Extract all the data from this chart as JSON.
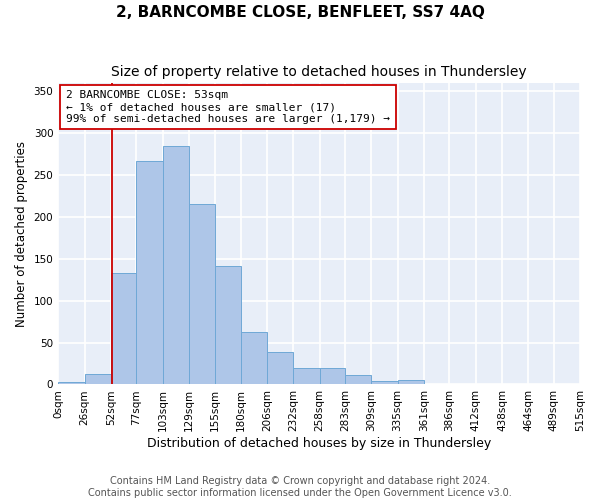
{
  "title": "2, BARNCOMBE CLOSE, BENFLEET, SS7 4AQ",
  "subtitle": "Size of property relative to detached houses in Thundersley",
  "xlabel": "Distribution of detached houses by size in Thundersley",
  "ylabel": "Number of detached properties",
  "bin_labels": [
    "0sqm",
    "26sqm",
    "52sqm",
    "77sqm",
    "103sqm",
    "129sqm",
    "155sqm",
    "180sqm",
    "206sqm",
    "232sqm",
    "258sqm",
    "283sqm",
    "309sqm",
    "335sqm",
    "361sqm",
    "386sqm",
    "412sqm",
    "438sqm",
    "464sqm",
    "489sqm",
    "515sqm"
  ],
  "bin_edges": [
    0,
    26,
    52,
    77,
    103,
    129,
    155,
    180,
    206,
    232,
    258,
    283,
    309,
    335,
    361,
    386,
    412,
    438,
    464,
    489,
    515
  ],
  "bar_heights": [
    3,
    13,
    133,
    267,
    285,
    216,
    142,
    63,
    39,
    20,
    20,
    11,
    4,
    5,
    1,
    1,
    0,
    0,
    0,
    0
  ],
  "bar_color": "#aec6e8",
  "bar_edge_color": "#6fa8d6",
  "vline_x": 53,
  "vline_color": "#cc0000",
  "annotation_line1": "2 BARNCOMBE CLOSE: 53sqm",
  "annotation_line2": "← 1% of detached houses are smaller (17)",
  "annotation_line3": "99% of semi-detached houses are larger (1,179) →",
  "ylim": [
    0,
    360
  ],
  "yticks": [
    0,
    50,
    100,
    150,
    200,
    250,
    300,
    350
  ],
  "bg_color": "#e8eef8",
  "grid_color": "#ffffff",
  "footer_line1": "Contains HM Land Registry data © Crown copyright and database right 2024.",
  "footer_line2": "Contains public sector information licensed under the Open Government Licence v3.0.",
  "title_fontsize": 11,
  "subtitle_fontsize": 10,
  "xlabel_fontsize": 9,
  "ylabel_fontsize": 8.5,
  "tick_fontsize": 7.5,
  "annotation_fontsize": 8,
  "footer_fontsize": 7
}
